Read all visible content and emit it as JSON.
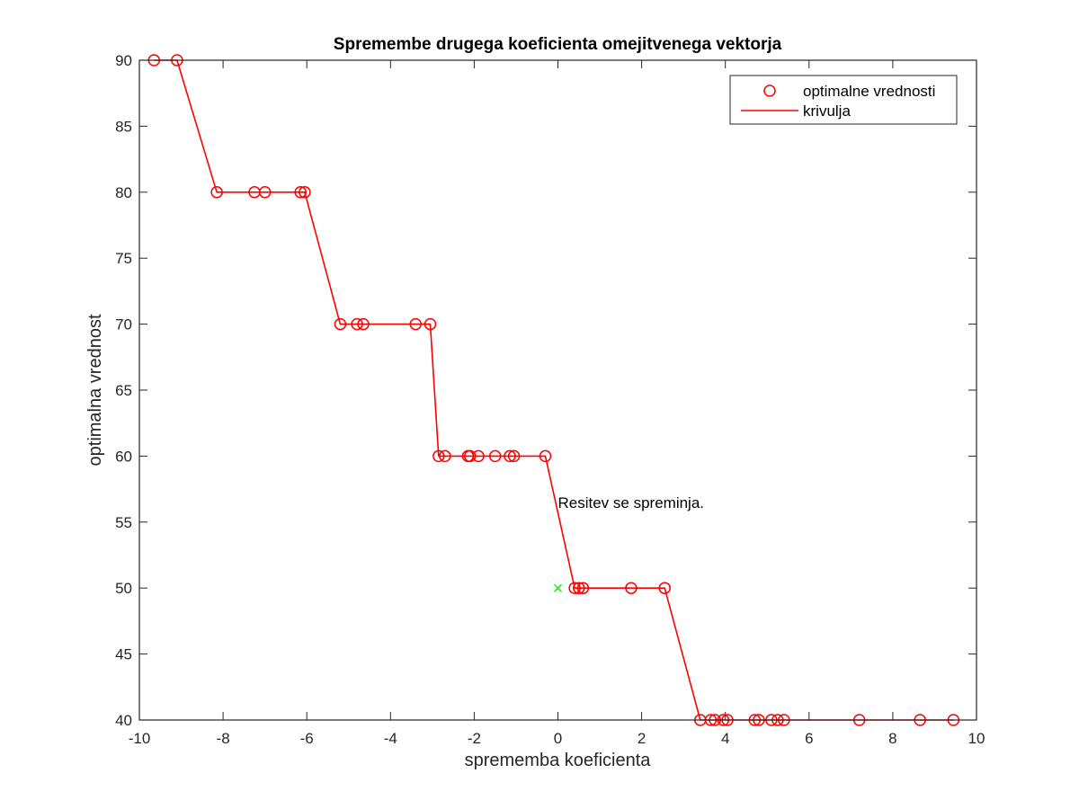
{
  "chart_data": {
    "type": "line",
    "title": "Spremembe drugega koeficienta omejitvenega vektorja",
    "xlabel": "sprememba koeficienta",
    "ylabel": "optimalna vrednost",
    "xlim": [
      -10,
      10
    ],
    "ylim": [
      40,
      90
    ],
    "xticks": [
      -10,
      -8,
      -6,
      -4,
      -2,
      0,
      2,
      4,
      6,
      8,
      10
    ],
    "yticks": [
      40,
      45,
      50,
      55,
      60,
      65,
      70,
      75,
      80,
      85,
      90
    ],
    "grid": false,
    "legend_position": "top-right",
    "series": [
      {
        "name": "optimalne vrednosti",
        "style": "markers",
        "marker": "circle",
        "color": "#ff0000",
        "x": [
          -9.65,
          -9.1,
          -8.15,
          -7.25,
          -7.0,
          -6.15,
          -6.05,
          -5.2,
          -4.8,
          -4.65,
          -3.4,
          -3.05,
          -2.85,
          -2.7,
          -2.15,
          -2.1,
          -1.9,
          -1.5,
          -1.15,
          -1.05,
          -0.3,
          0.4,
          0.5,
          0.6,
          1.75,
          2.55,
          3.4,
          3.65,
          3.75,
          3.95,
          4.05,
          4.7,
          4.8,
          5.1,
          5.25,
          5.4,
          7.2,
          8.65,
          9.45
        ],
        "y": [
          90,
          90,
          80,
          80,
          80,
          80,
          80,
          70,
          70,
          70,
          70,
          70,
          60,
          60,
          60,
          60,
          60,
          60,
          60,
          60,
          60,
          50,
          50,
          50,
          50,
          50,
          40,
          40,
          40,
          40,
          40,
          40,
          40,
          40,
          40,
          40,
          40,
          40,
          40
        ]
      },
      {
        "name": "krivulja",
        "style": "line",
        "color": "#ff0000",
        "x": [
          -9.65,
          -9.1,
          -8.15,
          -7.25,
          -7.0,
          -6.15,
          -6.05,
          -5.2,
          -4.8,
          -4.65,
          -3.4,
          -3.05,
          -2.85,
          -2.7,
          -2.15,
          -2.1,
          -1.9,
          -1.5,
          -1.15,
          -1.05,
          -0.3,
          0.4,
          0.5,
          0.6,
          1.75,
          2.55,
          3.4,
          3.65,
          3.75,
          3.95,
          4.05,
          4.7,
          4.8,
          5.1,
          5.25,
          5.4,
          7.2,
          8.65,
          9.45
        ],
        "y": [
          90,
          90,
          80,
          80,
          80,
          80,
          80,
          70,
          70,
          70,
          70,
          70,
          60,
          60,
          60,
          60,
          60,
          60,
          60,
          60,
          60,
          50,
          50,
          50,
          50,
          50,
          40,
          40,
          40,
          40,
          40,
          40,
          40,
          40,
          40,
          40,
          40,
          40,
          40
        ]
      }
    ],
    "current_point": {
      "x": 0,
      "y": 50,
      "marker": "x",
      "color": "#00ff00"
    },
    "annotations": [
      {
        "text": "Resitev se spreminja.",
        "x": 0,
        "y": 56.5
      }
    ]
  }
}
